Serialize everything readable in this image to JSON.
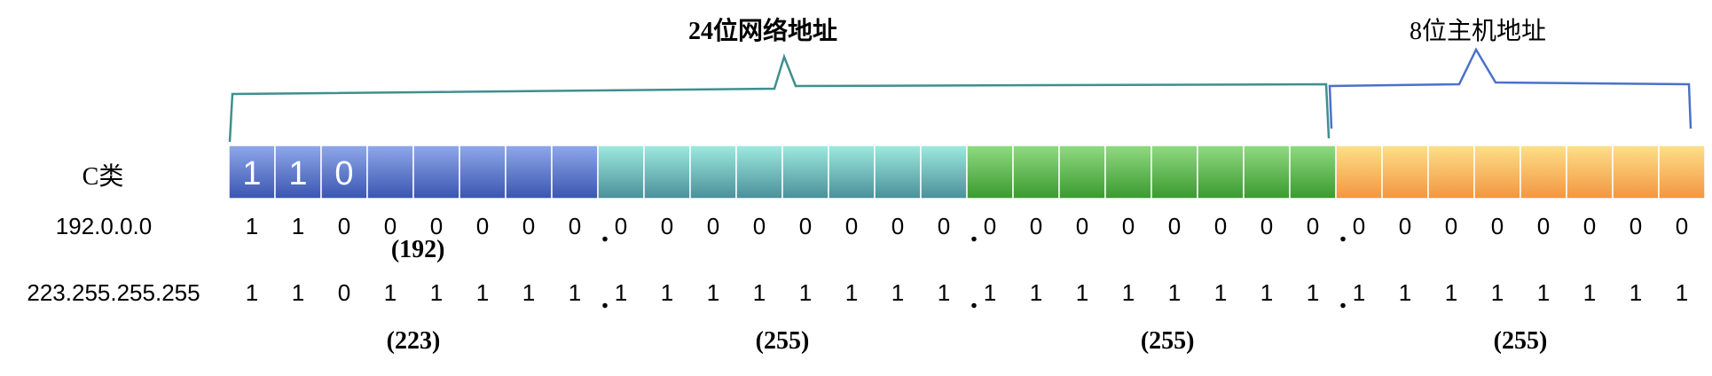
{
  "brackets": {
    "network_label": "24位网络地址",
    "host_label": "8位主机地址"
  },
  "row_labels": {
    "class": "C类",
    "low": "192.0.0.0",
    "high": "223.255.255.255"
  },
  "header_bits": [
    "1",
    "1",
    "0"
  ],
  "low_address": {
    "bits": [
      [
        "1",
        "1",
        "0",
        "0",
        "0",
        "0",
        "0",
        "0"
      ],
      [
        "0",
        "0",
        "0",
        "0",
        "0",
        "0",
        "0",
        "0"
      ],
      [
        "0",
        "0",
        "0",
        "0",
        "0",
        "0",
        "0",
        "0"
      ],
      [
        "0",
        "0",
        "0",
        "0",
        "0",
        "0",
        "0",
        "0"
      ]
    ],
    "first_octet_decimal": "(192)"
  },
  "high_address": {
    "bits": [
      [
        "1",
        "1",
        "0",
        "1",
        "1",
        "1",
        "1",
        "1"
      ],
      [
        "1",
        "1",
        "1",
        "1",
        "1",
        "1",
        "1",
        "1"
      ],
      [
        "1",
        "1",
        "1",
        "1",
        "1",
        "1",
        "1",
        "1"
      ],
      [
        "1",
        "1",
        "1",
        "1",
        "1",
        "1",
        "1",
        "1"
      ]
    ],
    "octet_decimals": [
      "(223)",
      "(255)",
      "(255)",
      "(255)"
    ]
  },
  "separator": ".",
  "colors": {
    "octet1_top": "#8fa8ea",
    "octet1_bottom": "#3a55b0",
    "octet2_top": "#9eeadf",
    "octet2_bottom": "#4a8f9a",
    "octet3_top": "#90da82",
    "octet3_bottom": "#3a9a2e",
    "octet4_top": "#fde08a",
    "octet4_bottom": "#f39540",
    "network_bracket": "#3f8f8f",
    "host_bracket": "#4a72c8"
  }
}
